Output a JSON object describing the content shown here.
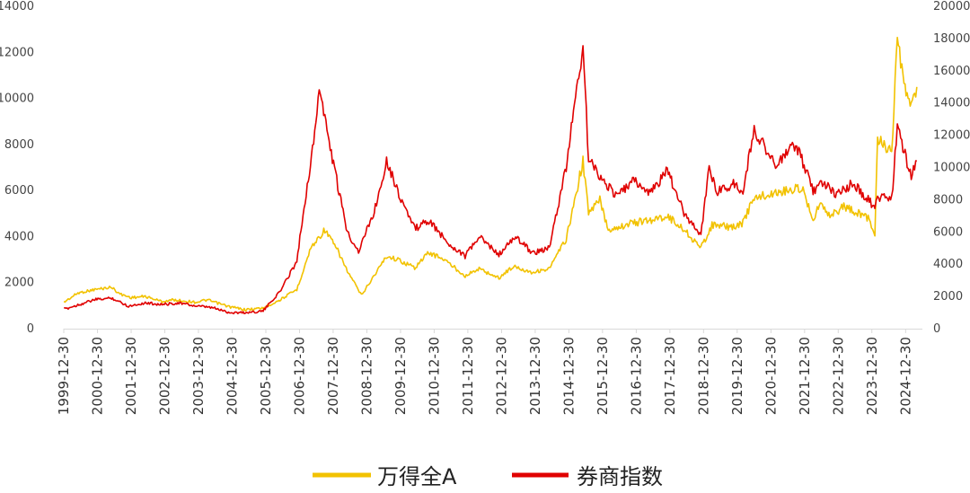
{
  "chart_data": {
    "type": "line",
    "title": "",
    "xlabel": "",
    "ylabel": "",
    "ylim_left": [
      0,
      14000
    ],
    "ylim_right": [
      0,
      20000
    ],
    "yticks_left": [
      "0",
      "2000",
      "4000",
      "6000",
      "8000",
      "10000",
      "12000",
      "14000"
    ],
    "yticks_right": [
      "0",
      "2000",
      "4000",
      "6000",
      "8000",
      "10000",
      "12000",
      "14000",
      "16000",
      "18000",
      "20000"
    ],
    "x_tick_labels": [
      "1999-12-30",
      "2000-12-30",
      "2001-12-30",
      "2002-12-30",
      "2003-12-30",
      "2004-12-30",
      "2005-12-30",
      "2006-12-30",
      "2007-12-30",
      "2008-12-30",
      "2009-12-30",
      "2010-12-30",
      "2011-12-30",
      "2012-12-30",
      "2013-12-30",
      "2014-12-30",
      "2015-12-30",
      "2016-12-30",
      "2017-12-30",
      "2018-12-30",
      "2019-12-30",
      "2020-12-30",
      "2021-12-30",
      "2022-12-30",
      "2023-12-30",
      "2024-12-30"
    ],
    "grid": false,
    "legend_position": "bottom-center",
    "series": [
      {
        "name": "万得全A",
        "axis": "left",
        "color": "#F2C200",
        "points": [
          [
            "2000-01-01",
            1150
          ],
          [
            "2000-06-01",
            1550
          ],
          [
            "2000-12-01",
            1700
          ],
          [
            "2001-06-01",
            1800
          ],
          [
            "2001-09-01",
            1500
          ],
          [
            "2002-01-01",
            1350
          ],
          [
            "2002-06-01",
            1400
          ],
          [
            "2002-12-01",
            1180
          ],
          [
            "2003-04-01",
            1250
          ],
          [
            "2003-12-01",
            1150
          ],
          [
            "2004-04-01",
            1250
          ],
          [
            "2004-12-01",
            950
          ],
          [
            "2005-06-01",
            820
          ],
          [
            "2005-12-01",
            900
          ],
          [
            "2006-06-01",
            1250
          ],
          [
            "2006-12-01",
            1700
          ],
          [
            "2007-05-01",
            3500
          ],
          [
            "2007-10-01",
            4300
          ],
          [
            "2008-03-01",
            3300
          ],
          [
            "2008-06-01",
            2500
          ],
          [
            "2008-11-01",
            1450
          ],
          [
            "2009-03-01",
            2200
          ],
          [
            "2009-08-01",
            3150
          ],
          [
            "2009-12-01",
            3000
          ],
          [
            "2010-06-01",
            2650
          ],
          [
            "2010-11-01",
            3300
          ],
          [
            "2011-04-01",
            3050
          ],
          [
            "2011-12-01",
            2300
          ],
          [
            "2012-05-01",
            2600
          ],
          [
            "2012-12-01",
            2200
          ],
          [
            "2013-05-01",
            2700
          ],
          [
            "2013-12-01",
            2450
          ],
          [
            "2014-06-01",
            2600
          ],
          [
            "2014-12-01",
            3900
          ],
          [
            "2015-03-01",
            5500
          ],
          [
            "2015-06-01",
            7300
          ],
          [
            "2015-08-01",
            5000
          ],
          [
            "2015-12-01",
            5600
          ],
          [
            "2016-03-01",
            4300
          ],
          [
            "2016-12-01",
            4600
          ],
          [
            "2017-06-01",
            4700
          ],
          [
            "2017-12-01",
            4900
          ],
          [
            "2018-06-01",
            4300
          ],
          [
            "2018-12-01",
            3500
          ],
          [
            "2019-04-01",
            4500
          ],
          [
            "2019-12-01",
            4400
          ],
          [
            "2020-03-01",
            4600
          ],
          [
            "2020-07-01",
            5700
          ],
          [
            "2020-12-01",
            5800
          ],
          [
            "2021-06-01",
            6000
          ],
          [
            "2021-12-01",
            6100
          ],
          [
            "2022-04-01",
            4800
          ],
          [
            "2022-07-01",
            5500
          ],
          [
            "2022-10-01",
            4900
          ],
          [
            "2023-03-01",
            5300
          ],
          [
            "2023-12-01",
            4800
          ],
          [
            "2024-02-01",
            4100
          ],
          [
            "2024-03-01",
            8300
          ],
          [
            "2024-08-01",
            7600
          ],
          [
            "2024-10-01",
            12500
          ],
          [
            "2024-12-01",
            10800
          ],
          [
            "2025-03-01",
            9500
          ],
          [
            "2025-05-01",
            10500
          ]
        ]
      },
      {
        "name": "券商指数",
        "axis": "right",
        "color": "#E00000",
        "points": [
          [
            "2000-01-01",
            1200
          ],
          [
            "2000-12-01",
            1800
          ],
          [
            "2001-06-01",
            1900
          ],
          [
            "2001-12-01",
            1400
          ],
          [
            "2002-06-01",
            1600
          ],
          [
            "2002-12-01",
            1500
          ],
          [
            "2003-06-01",
            1600
          ],
          [
            "2003-12-01",
            1400
          ],
          [
            "2004-06-01",
            1300
          ],
          [
            "2004-12-01",
            1000
          ],
          [
            "2005-06-01",
            1000
          ],
          [
            "2005-12-01",
            1100
          ],
          [
            "2006-06-01",
            2300
          ],
          [
            "2006-12-01",
            4200
          ],
          [
            "2007-03-01",
            8000
          ],
          [
            "2007-06-01",
            11500
          ],
          [
            "2007-08-01",
            15000
          ],
          [
            "2007-10-01",
            13000
          ],
          [
            "2008-03-01",
            8500
          ],
          [
            "2008-06-01",
            6000
          ],
          [
            "2008-10-01",
            4800
          ],
          [
            "2009-04-01",
            7500
          ],
          [
            "2009-08-01",
            10500
          ],
          [
            "2009-12-01",
            8500
          ],
          [
            "2010-06-01",
            6200
          ],
          [
            "2010-11-01",
            6700
          ],
          [
            "2011-06-01",
            5300
          ],
          [
            "2011-12-01",
            4500
          ],
          [
            "2012-05-01",
            5700
          ],
          [
            "2012-12-01",
            4600
          ],
          [
            "2013-06-01",
            5700
          ],
          [
            "2013-12-01",
            4700
          ],
          [
            "2014-06-01",
            5000
          ],
          [
            "2014-12-01",
            10000
          ],
          [
            "2015-03-01",
            14000
          ],
          [
            "2015-06-01",
            17500
          ],
          [
            "2015-08-01",
            10500
          ],
          [
            "2015-12-01",
            9500
          ],
          [
            "2016-06-01",
            8200
          ],
          [
            "2016-12-01",
            9200
          ],
          [
            "2017-06-01",
            8400
          ],
          [
            "2017-12-01",
            9800
          ],
          [
            "2018-06-01",
            7200
          ],
          [
            "2018-12-01",
            5800
          ],
          [
            "2019-03-01",
            10000
          ],
          [
            "2019-06-01",
            8500
          ],
          [
            "2019-12-01",
            9000
          ],
          [
            "2020-03-01",
            8500
          ],
          [
            "2020-07-01",
            12300
          ],
          [
            "2020-12-01",
            11000
          ],
          [
            "2021-03-01",
            10000
          ],
          [
            "2021-09-01",
            11500
          ],
          [
            "2021-12-01",
            10500
          ],
          [
            "2022-04-01",
            8500
          ],
          [
            "2022-07-01",
            9200
          ],
          [
            "2022-12-01",
            8300
          ],
          [
            "2023-06-01",
            9000
          ],
          [
            "2023-12-01",
            8000
          ],
          [
            "2024-02-01",
            7400
          ],
          [
            "2024-03-01",
            8200
          ],
          [
            "2024-08-01",
            8000
          ],
          [
            "2024-10-01",
            12600
          ],
          [
            "2024-12-01",
            11200
          ],
          [
            "2025-03-01",
            9500
          ],
          [
            "2025-05-01",
            10400
          ]
        ]
      }
    ]
  }
}
